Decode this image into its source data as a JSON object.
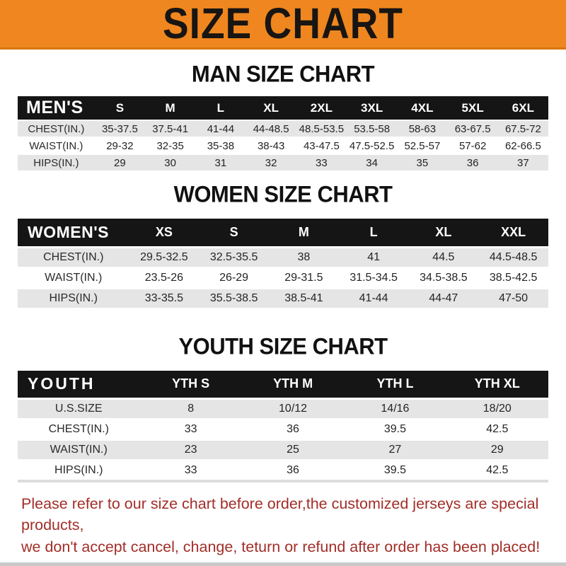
{
  "banner": {
    "title": "SIZE CHART"
  },
  "colors": {
    "banner_orange": "#EF861F",
    "banner_border": "#D8770E",
    "header_black": "#151515",
    "row_gray": "#E5E5E6",
    "disclaimer_red": "#A22E28",
    "bottom_strip_gray": "#C9C9C9"
  },
  "sections": {
    "men": {
      "heading": "MAN SIZE CHART",
      "table": {
        "header": [
          "MEN'S",
          "S",
          "M",
          "L",
          "XL",
          "2XL",
          "3XL",
          "4XL",
          "5XL",
          "6XL"
        ],
        "rows": [
          {
            "label": "CHEST(IN.)",
            "values": [
              "35-37.5",
              "37.5-41",
              "41-44",
              "44-48.5",
              "48.5-53.5",
              "53.5-58",
              "58-63",
              "63-67.5",
              "67.5-72"
            ]
          },
          {
            "label": "WAIST(IN.)",
            "values": [
              "29-32",
              "32-35",
              "35-38",
              "38-43",
              "43-47.5",
              "47.5-52.5",
              "52.5-57",
              "57-62",
              "62-66.5"
            ]
          },
          {
            "label": "HIPS(IN.)",
            "values": [
              "29",
              "30",
              "31",
              "32",
              "33",
              "34",
              "35",
              "36",
              "37"
            ]
          }
        ]
      }
    },
    "women": {
      "heading": "WOMEN SIZE CHART",
      "table": {
        "header": [
          "WOMEN'S",
          "XS",
          "S",
          "M",
          "L",
          "XL",
          "XXL"
        ],
        "rows": [
          {
            "label": "CHEST(IN.)",
            "values": [
              "29.5-32.5",
              "32.5-35.5",
              "38",
              "41",
              "44.5",
              "44.5-48.5"
            ]
          },
          {
            "label": "WAIST(IN.)",
            "values": [
              "23.5-26",
              "26-29",
              "29-31.5",
              "31.5-34.5",
              "34.5-38.5",
              "38.5-42.5"
            ]
          },
          {
            "label": "HIPS(IN.)",
            "values": [
              "33-35.5",
              "35.5-38.5",
              "38.5-41",
              "41-44",
              "44-47",
              "47-50"
            ]
          }
        ]
      }
    },
    "youth": {
      "heading": "YOUTH SIZE CHART",
      "table": {
        "header": [
          "YOUTH",
          "YTH S",
          "YTH M",
          "YTH L",
          "YTH XL"
        ],
        "rows": [
          {
            "label": "U.S.SIZE",
            "values": [
              "8",
              "10/12",
              "14/16",
              "18/20"
            ]
          },
          {
            "label": "CHEST(IN.)",
            "values": [
              "33",
              "36",
              "39.5",
              "42.5"
            ]
          },
          {
            "label": "WAIST(IN.)",
            "values": [
              "23",
              "25",
              "27",
              "29"
            ]
          },
          {
            "label": "HIPS(IN.)",
            "values": [
              "33",
              "36",
              "39.5",
              "42.5"
            ]
          }
        ]
      }
    }
  },
  "disclaimer": {
    "line1": "Please refer to our size chart before order,the customized jerseys are special products,",
    "line2": "we don't accept cancel, change, teturn or refund after order has been placed!"
  }
}
